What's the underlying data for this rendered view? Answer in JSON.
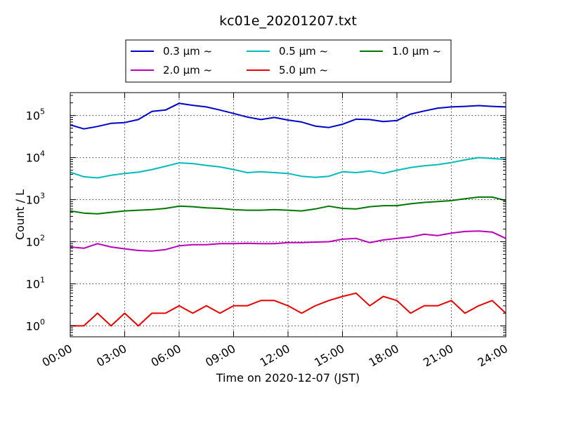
{
  "chart_data": {
    "type": "line",
    "title": "kc01e_20201207.txt",
    "xlabel": "Time on 2020-12-07 (JST)",
    "ylabel": "Count / L",
    "y_scale": "log",
    "ylim": [
      0.55,
      350000
    ],
    "xlim_hours": [
      0,
      24
    ],
    "grid": true,
    "legend_placement": "top-center",
    "x_tick_labels": [
      "00:00",
      "03:00",
      "06:00",
      "09:00",
      "12:00",
      "15:00",
      "18:00",
      "21:00",
      "24:00"
    ],
    "y_tick_labels": [
      {
        "base": "10",
        "exp": "0"
      },
      {
        "base": "10",
        "exp": "1"
      },
      {
        "base": "10",
        "exp": "2"
      },
      {
        "base": "10",
        "exp": "3"
      },
      {
        "base": "10",
        "exp": "4"
      },
      {
        "base": "10",
        "exp": "5"
      }
    ],
    "series": [
      {
        "name": "0.3 μm ~",
        "color": "#0000cc",
        "values_hourly": [
          60000,
          48000,
          55000,
          65000,
          68000,
          80000,
          125000,
          135000,
          195000,
          175000,
          160000,
          135000,
          112000,
          92000,
          80000,
          90000,
          78000,
          70000,
          56000,
          52000,
          62000,
          82000,
          80000,
          72000,
          76000,
          108000,
          128000,
          150000,
          160000,
          165000,
          172000,
          165000,
          160000
        ]
      },
      {
        "name": "0.5 μm ~",
        "color": "#00bbbb",
        "values_hourly": [
          4500,
          3500,
          3300,
          3800,
          4200,
          4500,
          5200,
          6200,
          7500,
          7200,
          6500,
          6000,
          5200,
          4400,
          4600,
          4400,
          4200,
          3600,
          3400,
          3600,
          4600,
          4400,
          4800,
          4200,
          5000,
          5800,
          6400,
          6800,
          7600,
          8800,
          10000,
          9500,
          9000
        ]
      },
      {
        "name": "1.0 μm ~",
        "color": "#007700",
        "values_hourly": [
          540,
          480,
          460,
          500,
          540,
          560,
          580,
          620,
          700,
          680,
          640,
          620,
          580,
          560,
          560,
          580,
          560,
          540,
          600,
          700,
          620,
          600,
          680,
          720,
          720,
          800,
          860,
          900,
          950,
          1050,
          1150,
          1150,
          950
        ]
      },
      {
        "name": "2.0 μm ~",
        "color": "#bb00bb",
        "values_hourly": [
          75,
          70,
          90,
          75,
          68,
          62,
          60,
          65,
          80,
          85,
          85,
          90,
          90,
          92,
          90,
          90,
          95,
          95,
          98,
          100,
          115,
          120,
          95,
          110,
          120,
          130,
          150,
          140,
          160,
          175,
          180,
          170,
          120
        ]
      },
      {
        "name": "5.0 μm ~",
        "color": "#ee0000",
        "values_hourly": [
          1,
          1,
          2,
          1,
          2,
          1,
          2,
          2,
          3,
          2,
          3,
          2,
          3,
          3,
          4,
          4,
          3,
          2,
          3,
          4,
          5,
          6,
          3,
          5,
          4,
          2,
          3,
          3,
          4,
          2,
          3,
          4,
          2
        ]
      }
    ]
  }
}
